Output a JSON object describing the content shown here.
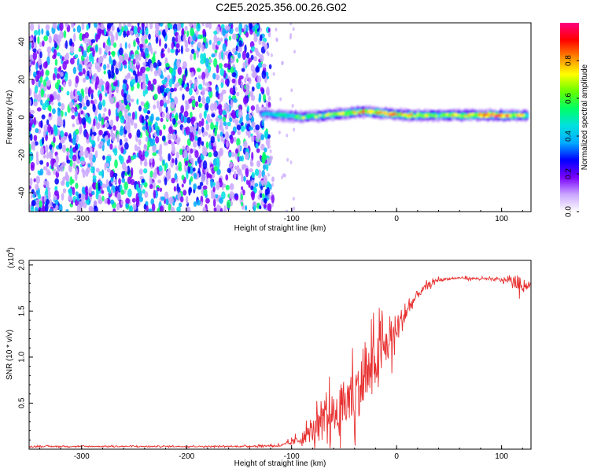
{
  "title": "C2E5.2025.356.00.26.G02",
  "chart_data": [
    {
      "type": "heatmap",
      "xlabel": "Height of straight line (km)",
      "ylabel": "Frequency (Hz)",
      "xlim": [
        -350,
        128
      ],
      "ylim": [
        -50,
        50
      ],
      "x_ticks": [
        -300,
        -200,
        -100,
        0,
        100
      ],
      "y_ticks": [
        -40,
        -20,
        0,
        20,
        40
      ],
      "colorbar": {
        "label": "Normalized spectral amplitude",
        "range": [
          0,
          1
        ],
        "ticks": [
          "0.0",
          "0.2",
          "0.4",
          "0.6",
          "0.8"
        ],
        "colors": [
          "#ffffff",
          "#c9a6ff",
          "#7a00ff",
          "#0000ff",
          "#00aaff",
          "#00e0e0",
          "#00ff66",
          "#66ff00",
          "#ffff00",
          "#ff8800",
          "#ff0000",
          "#ff0080"
        ]
      },
      "signal_band": {
        "x_start": -135,
        "x_end": 128,
        "center_freq_hz": 0,
        "noise_region_x_end": -125,
        "description_points": [
          {
            "x": -130,
            "freq": 2,
            "amp": 0.35
          },
          {
            "x": -110,
            "freq": 1,
            "amp": 0.5
          },
          {
            "x": -90,
            "freq": 0,
            "amp": 0.55
          },
          {
            "x": -70,
            "freq": 1,
            "amp": 0.6
          },
          {
            "x": -50,
            "freq": 2,
            "amp": 0.65
          },
          {
            "x": -30,
            "freq": 3,
            "amp": 0.75
          },
          {
            "x": -10,
            "freq": 2,
            "amp": 0.85
          },
          {
            "x": 10,
            "freq": 1,
            "amp": 0.7
          },
          {
            "x": 40,
            "freq": 1,
            "amp": 0.6
          },
          {
            "x": 70,
            "freq": 1,
            "amp": 0.7
          },
          {
            "x": 90,
            "freq": 1,
            "amp": 0.95
          },
          {
            "x": 110,
            "freq": 1,
            "amp": 0.7
          },
          {
            "x": 125,
            "freq": 1,
            "amp": 0.6
          }
        ]
      }
    },
    {
      "type": "line",
      "xlabel": "Height of straight line (km)",
      "ylabel": "SNR (10 * v/v)",
      "y_multiplier_label": "(x10",
      "y_multiplier_exp": "4",
      "y_multiplier_close": ")",
      "xlim": [
        -350,
        128
      ],
      "ylim": [
        0,
        2.05
      ],
      "x_ticks": [
        -300,
        -200,
        -100,
        0,
        100
      ],
      "y_ticks": [
        0.5,
        1.0,
        1.5,
        2.0
      ],
      "y_tick_labels": [
        "0.5",
        "1.0",
        "1.5",
        "2.0"
      ],
      "line_color": "#e83030",
      "series": [
        {
          "name": "SNR",
          "x": [
            -350,
            -300,
            -250,
            -200,
            -150,
            -110,
            -100,
            -90,
            -80,
            -70,
            -60,
            -50,
            -40,
            -30,
            -20,
            -10,
            0,
            10,
            20,
            30,
            40,
            50,
            60,
            80,
            100,
            110,
            115,
            120,
            128
          ],
          "y": [
            0.03,
            0.03,
            0.03,
            0.03,
            0.03,
            0.04,
            0.07,
            0.12,
            0.2,
            0.28,
            0.38,
            0.48,
            0.6,
            0.75,
            0.95,
            1.12,
            1.3,
            1.5,
            1.68,
            1.78,
            1.84,
            1.85,
            1.86,
            1.85,
            1.84,
            1.83,
            1.8,
            1.78,
            1.78
          ],
          "noise_amplitude": [
            0.01,
            0.01,
            0.01,
            0.01,
            0.01,
            0.02,
            0.05,
            0.1,
            0.2,
            0.3,
            0.4,
            0.45,
            0.5,
            0.5,
            0.45,
            0.4,
            0.3,
            0.15,
            0.08,
            0.05,
            0.03,
            0.02,
            0.02,
            0.02,
            0.03,
            0.06,
            0.15,
            0.1,
            0.03
          ]
        }
      ]
    }
  ]
}
